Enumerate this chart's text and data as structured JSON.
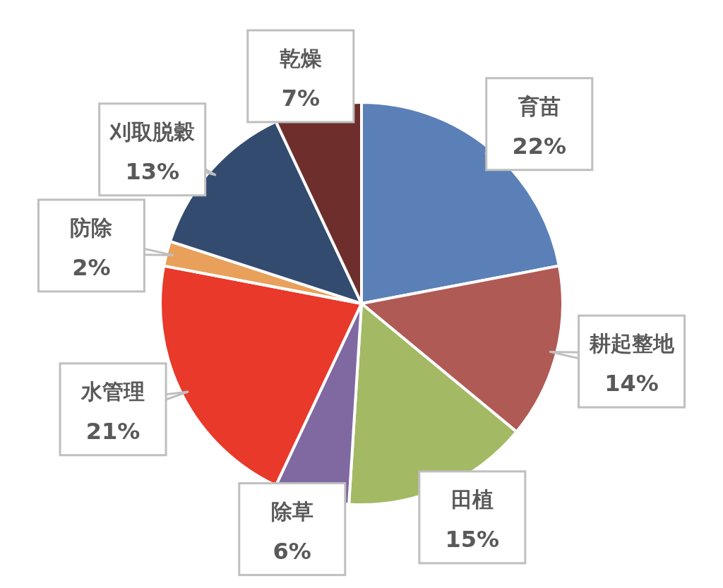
{
  "chart_data": {
    "type": "pie",
    "categories": [
      "育苗",
      "耕起整地",
      "田植",
      "除草",
      "水管理",
      "防除",
      "刈取脱穀",
      "乾燥"
    ],
    "values": [
      22,
      14,
      15,
      6,
      21,
      2,
      13,
      7
    ],
    "colors": [
      "#5b80b8",
      "#b05a55",
      "#a3b964",
      "#7f69a0",
      "#e8392a",
      "#e9a05a",
      "#344b70",
      "#6e2e2c"
    ],
    "value_labels": [
      "22%",
      "14%",
      "15%",
      "6%",
      "21%",
      "2%",
      "13%",
      "7%"
    ]
  }
}
